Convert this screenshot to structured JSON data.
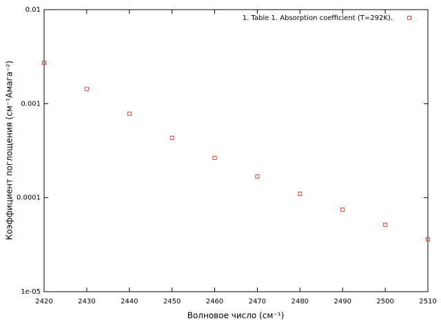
{
  "chart_data": {
    "type": "scatter",
    "xlabel": "Волновое число (см⁻¹)",
    "ylabel": "Коэффициент поглощения (см⁻¹Амага⁻²)",
    "log_y": true,
    "xlim": [
      2420,
      2510
    ],
    "xticks": [
      2420,
      2430,
      2440,
      2450,
      2460,
      2470,
      2480,
      2490,
      2500,
      2510
    ],
    "ylim": [
      1e-05,
      0.01
    ],
    "yticks": [
      0.01,
      0.001,
      0.0001,
      {
        "value": 1e-05,
        "label": "1e-05"
      }
    ],
    "legend": "top-right",
    "series": [
      {
        "name": "1. Table 1. Absorption coefficient (T=292K).",
        "color": "#e8413a",
        "x": [
          2420,
          2430,
          2440,
          2450,
          2460,
          2470,
          2480,
          2490,
          2500,
          2510
        ],
        "values": [
          0.00272,
          0.00143,
          0.00078,
          0.000432,
          0.000265,
          0.000168,
          0.00011,
          7.45e-05,
          5.14e-05,
          3.61e-05
        ]
      }
    ]
  }
}
